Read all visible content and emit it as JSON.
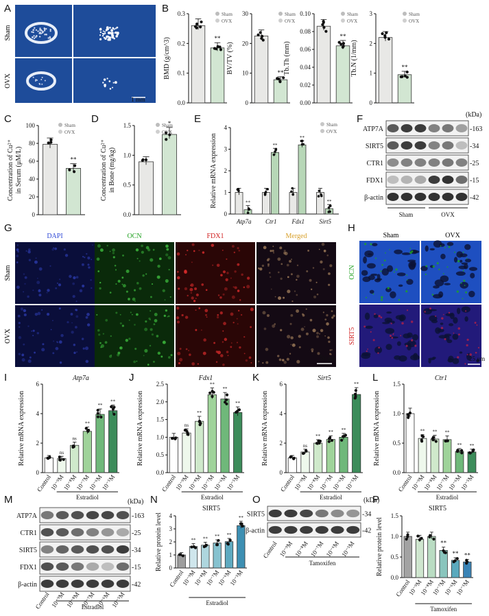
{
  "panels": {
    "A": {
      "letter": "A",
      "rows": [
        "Sham",
        "OVX"
      ],
      "scale_bar": "1 mm"
    },
    "B": {
      "letter": "B",
      "legend": [
        "Sham",
        "OVX"
      ],
      "charts": [
        {
          "ylabel": "BMD (g/cm^3)",
          "ymax": 0.3,
          "yticks": [
            "0.0",
            "0.1",
            "0.2",
            "0.3"
          ],
          "values": [
            0.26,
            0.185
          ],
          "sig": [
            "",
            "**"
          ]
        },
        {
          "ylabel": "BV/TV (%)",
          "ymax": 30,
          "yticks": [
            "0",
            "10",
            "20",
            "30"
          ],
          "values": [
            22.5,
            7.8
          ],
          "sig": [
            "",
            "**"
          ]
        },
        {
          "ylabel": "Tb.Th (mm)",
          "ymax": 0.1,
          "yticks": [
            "0.00",
            "0.02",
            "0.04",
            "0.06",
            "0.08",
            "0.10"
          ],
          "values": [
            0.086,
            0.064
          ],
          "sig": [
            "",
            "**"
          ]
        },
        {
          "ylabel": "Tb.N (1/mm)",
          "ymax": 3,
          "yticks": [
            "0",
            "1",
            "2",
            "3"
          ],
          "values": [
            2.2,
            0.95
          ],
          "sig": [
            "",
            "**"
          ]
        }
      ]
    },
    "C": {
      "letter": "C",
      "ylabel_line1": "Concentration of Cu²⁺",
      "ylabel_line2": "in Serum (μM/L)",
      "yticks": [
        "0",
        "20",
        "40",
        "60",
        "80",
        "100"
      ],
      "values": [
        79,
        52
      ],
      "sig": "**",
      "legend": [
        "Sham",
        "OVX"
      ]
    },
    "D": {
      "letter": "D",
      "ylabel_line1": "Concentration of Cu²⁺",
      "ylabel_line2": "in Bone (mg/kg)",
      "yticks": [
        "0.0",
        "0.5",
        "1.0",
        "1.5"
      ],
      "values": [
        0.89,
        1.35
      ],
      "sig": "*",
      "legend": [
        "Sham",
        "OVX"
      ]
    },
    "E": {
      "letter": "E",
      "ylabel": "Relative mRNA expression",
      "yticks": [
        "0",
        "1",
        "2",
        "3",
        "4"
      ],
      "genes": [
        "Atp7a",
        "Ctr1",
        "Fdx1",
        "Sirt5"
      ],
      "sham": [
        1.0,
        1.0,
        1.0,
        1.0
      ],
      "ovx": [
        0.2,
        2.85,
        3.2,
        0.25
      ],
      "legend": [
        "Sham",
        "OVX"
      ]
    },
    "F": {
      "letter": "F",
      "kda_header": "(kDa)",
      "rows": [
        {
          "name": "ATP7A",
          "kda": "163"
        },
        {
          "name": "SIRT5",
          "kda": "34"
        },
        {
          "name": "CTR1",
          "kda": "25"
        },
        {
          "name": "FDX1",
          "kda": "15"
        },
        {
          "name": "β-actin",
          "kda": "42"
        }
      ],
      "groups": [
        "Sham",
        "OVX"
      ]
    },
    "G": {
      "letter": "G",
      "columns": [
        "DAPI",
        "OCN",
        "FDX1",
        "Merged"
      ],
      "rows": [
        "Sham",
        "OVX"
      ],
      "scale_bar": "50 μm"
    },
    "H": {
      "letter": "H",
      "columns": [
        "Sham",
        "OVX"
      ],
      "rows": [
        "OCN",
        "SIRT5"
      ],
      "scale_bar": "25 μm"
    },
    "I": {
      "letter": "I",
      "gene": "Atp7a",
      "ylabel": "Relative mRNA expression",
      "yticks": [
        "0",
        "2",
        "4",
        "6"
      ],
      "ymax": 6,
      "values": [
        1.0,
        0.95,
        1.85,
        2.8,
        3.95,
        4.2
      ],
      "sig": [
        "",
        "ns",
        "ns",
        "**",
        "**",
        "**"
      ]
    },
    "J": {
      "letter": "J",
      "gene": "Fdx1",
      "ylabel": "Relative mRNA expression",
      "yticks": [
        "0.0",
        "0.5",
        "1.0",
        "1.5",
        "2.0",
        "2.5"
      ],
      "ymax": 2.5,
      "values": [
        1.0,
        1.12,
        1.45,
        2.2,
        2.08,
        1.7
      ],
      "sig": [
        "",
        "ns",
        "**",
        "**",
        "**",
        "**"
      ]
    },
    "K": {
      "letter": "K",
      "gene": "Sirt5",
      "ylabel": "Relative mRNA expression",
      "yticks": [
        "0",
        "2",
        "4",
        "6"
      ],
      "ymax": 6,
      "values": [
        1.0,
        1.4,
        2.0,
        2.25,
        2.4,
        5.3
      ],
      "sig": [
        "",
        "ns",
        "**",
        "**",
        "**",
        "**"
      ]
    },
    "L": {
      "letter": "L",
      "gene": "Ctr1",
      "ylabel": "Relative mRNA expression",
      "yticks": [
        "0.0",
        "0.5",
        "1.0",
        "1.5"
      ],
      "ymax": 1.5,
      "values": [
        1.0,
        0.58,
        0.57,
        0.56,
        0.36,
        0.35
      ],
      "sig": [
        "",
        "**",
        "**",
        "**",
        "**",
        "**"
      ]
    },
    "M": {
      "letter": "M",
      "kda_header": "(kDa)",
      "rows": [
        {
          "name": "ATP7A",
          "kda": "163"
        },
        {
          "name": "CTR1",
          "kda": "25"
        },
        {
          "name": "SIRT5",
          "kda": "34"
        },
        {
          "name": "FDX1",
          "kda": "15"
        },
        {
          "name": "β-actin",
          "kda": "42"
        }
      ],
      "lanes": [
        "Control",
        "10⁻⁹M",
        "10⁻⁸M",
        "10⁻⁷M",
        "10⁻⁶M",
        "10⁻⁵M"
      ],
      "treatment": "Estradiol"
    },
    "N": {
      "letter": "N",
      "title": "SIRT5",
      "ylabel": "Relative protein level",
      "yticks": [
        "0",
        "1",
        "2",
        "3",
        "4"
      ],
      "ymax": 4,
      "values": [
        1.0,
        1.65,
        1.75,
        1.92,
        2.02,
        3.25
      ],
      "sig": [
        "",
        "**",
        "**",
        "**",
        "**",
        "**"
      ]
    },
    "O": {
      "letter": "O",
      "kda_header": "(kDa)",
      "rows": [
        {
          "name": "SIRT5",
          "kda": "34"
        },
        {
          "name": "β-actin",
          "kda": "42"
        }
      ],
      "lanes": [
        "Control",
        "10⁻⁹M",
        "10⁻⁸M",
        "10⁻⁷M",
        "10⁻⁶M",
        "10⁻⁵M"
      ],
      "treatment": "Tamoxifen"
    },
    "P": {
      "letter": "P",
      "title": "SIRT5",
      "ylabel": "Relative protein level",
      "yticks": [
        "0.0",
        "0.5",
        "1.0",
        "1.5"
      ],
      "ymax": 1.5,
      "values": [
        1.0,
        0.93,
        1.0,
        0.66,
        0.42,
        0.38
      ],
      "sig": [
        "",
        "",
        "",
        "**",
        "**",
        "**"
      ]
    }
  },
  "dose_labels": [
    "Control",
    "10⁻⁹M",
    "10⁻⁸M",
    "10⁻⁷M",
    "10⁻⁶M",
    "10⁻⁵M"
  ],
  "estradiol_label": "Estradiol",
  "tamoxifen_label": "Tamoxifen",
  "colors": {
    "sham_bar": "#e8e8e6",
    "ovx_bar": "#d2e6d2",
    "ovx_bar_dark": "#b7d7b7",
    "micro_ct_bg": "#1e4c9a",
    "estradiol_scale": [
      "#ffffff",
      "#eef8ec",
      "#cfe9cb",
      "#9fd39a",
      "#6fb87a",
      "#3c8c5a"
    ],
    "tamoxifen_scale": [
      "#a3a3a3",
      "#cfe6cf",
      "#b9dcc2",
      "#89c5bd",
      "#5aa9bd",
      "#3b84b6"
    ],
    "dapi": "#0a0e3a",
    "ocn": "#0a2a0a",
    "fdx1": "#2a0606"
  }
}
